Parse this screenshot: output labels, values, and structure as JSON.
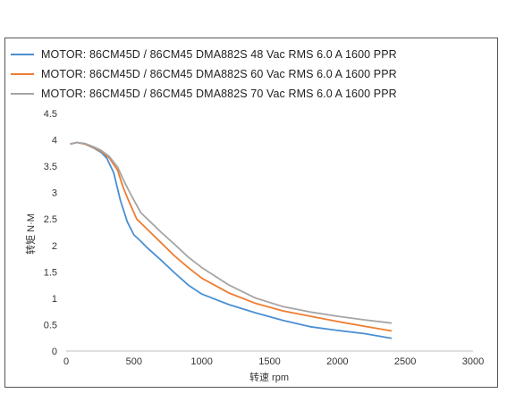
{
  "chart_data": {
    "type": "line",
    "xlabel": "转速 rpm",
    "ylabel": "转矩 N·M",
    "xlim": [
      0,
      3000
    ],
    "ylim": [
      0,
      4.5
    ],
    "x_ticks": [
      "0",
      "500",
      "1000",
      "1500",
      "2000",
      "2500",
      "3000"
    ],
    "y_ticks": [
      "0",
      "0.5",
      "1",
      "1.5",
      "2",
      "2.5",
      "3",
      "3.5",
      "4",
      "4.5"
    ],
    "grid": false,
    "legend_position": "top",
    "series": [
      {
        "name": "MOTOR: 86CM45D / 86CM45 DMA882S 48 Vac  RMS  6.0 A  1600 PPR",
        "color": "#4a8fd3",
        "points": [
          [
            30,
            3.92
          ],
          [
            80,
            3.95
          ],
          [
            140,
            3.92
          ],
          [
            200,
            3.85
          ],
          [
            260,
            3.76
          ],
          [
            300,
            3.65
          ],
          [
            350,
            3.38
          ],
          [
            400,
            2.85
          ],
          [
            450,
            2.45
          ],
          [
            500,
            2.2
          ],
          [
            550,
            2.08
          ],
          [
            600,
            1.95
          ],
          [
            700,
            1.72
          ],
          [
            800,
            1.48
          ],
          [
            900,
            1.25
          ],
          [
            1000,
            1.08
          ],
          [
            1200,
            0.88
          ],
          [
            1400,
            0.72
          ],
          [
            1600,
            0.58
          ],
          [
            1800,
            0.46
          ],
          [
            2000,
            0.39
          ],
          [
            2200,
            0.33
          ],
          [
            2400,
            0.24
          ]
        ]
      },
      {
        "name": "MOTOR: 86CM45D / 86CM45 DMA882S 60 Vac  RMS  6.0 A  1600 PPR",
        "color": "#ed7d31",
        "points": [
          [
            30,
            3.92
          ],
          [
            80,
            3.95
          ],
          [
            140,
            3.92
          ],
          [
            200,
            3.86
          ],
          [
            260,
            3.78
          ],
          [
            320,
            3.65
          ],
          [
            380,
            3.42
          ],
          [
            420,
            3.1
          ],
          [
            460,
            2.85
          ],
          [
            520,
            2.5
          ],
          [
            600,
            2.3
          ],
          [
            700,
            2.05
          ],
          [
            800,
            1.8
          ],
          [
            900,
            1.58
          ],
          [
            1000,
            1.38
          ],
          [
            1200,
            1.1
          ],
          [
            1400,
            0.9
          ],
          [
            1600,
            0.76
          ],
          [
            1800,
            0.66
          ],
          [
            2000,
            0.56
          ],
          [
            2200,
            0.47
          ],
          [
            2400,
            0.38
          ]
        ]
      },
      {
        "name": "MOTOR: 86CM45D / 86CM45 DMA882S 70 Vac  RMS  6.0 A  1600 PPR",
        "color": "#a5a5a5",
        "points": [
          [
            30,
            3.92
          ],
          [
            80,
            3.95
          ],
          [
            140,
            3.93
          ],
          [
            200,
            3.87
          ],
          [
            260,
            3.8
          ],
          [
            320,
            3.68
          ],
          [
            380,
            3.48
          ],
          [
            430,
            3.2
          ],
          [
            480,
            2.95
          ],
          [
            550,
            2.62
          ],
          [
            620,
            2.45
          ],
          [
            700,
            2.25
          ],
          [
            800,
            2.02
          ],
          [
            900,
            1.78
          ],
          [
            1000,
            1.58
          ],
          [
            1200,
            1.25
          ],
          [
            1400,
            1.0
          ],
          [
            1600,
            0.84
          ],
          [
            1800,
            0.74
          ],
          [
            2000,
            0.66
          ],
          [
            2200,
            0.59
          ],
          [
            2400,
            0.53
          ]
        ]
      }
    ]
  }
}
